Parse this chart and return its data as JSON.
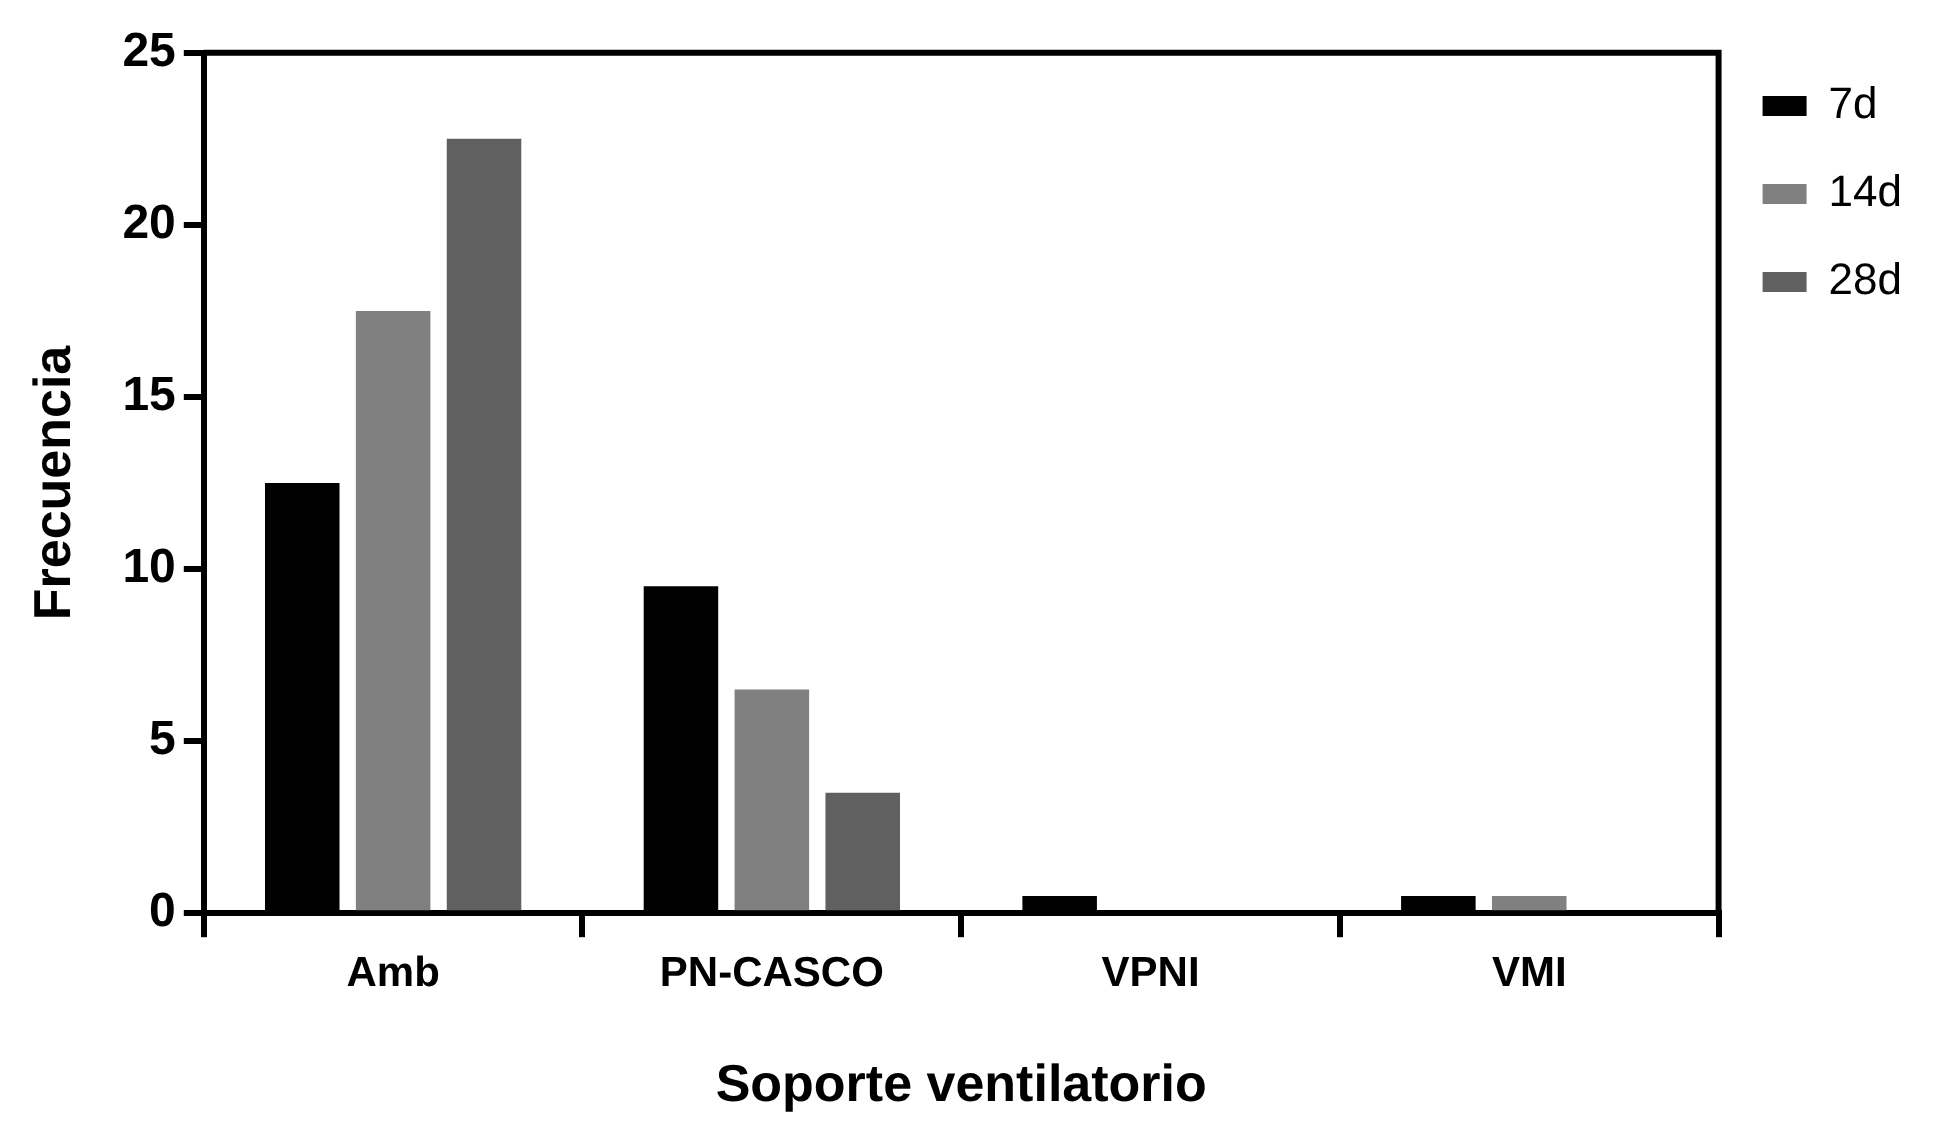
{
  "chart_data": {
    "type": "bar",
    "xlabel": "Soporte ventilatorio",
    "ylabel": "Frecuencia",
    "categories": [
      "Amb",
      "PN-CASCO",
      "VPNI",
      "VMI"
    ],
    "series": [
      {
        "name": "7d",
        "color": "#000000",
        "values": [
          12.5,
          9.5,
          0.5,
          0.5
        ]
      },
      {
        "name": "14d",
        "color": "#808080",
        "values": [
          17.5,
          6.5,
          0,
          0.5
        ]
      },
      {
        "name": "28d",
        "color": "#606060",
        "values": [
          22.5,
          3.5,
          0,
          0
        ]
      }
    ],
    "ylim": [
      0,
      25
    ],
    "yticks": [
      0,
      5,
      10,
      15,
      20,
      25
    ],
    "grid": false,
    "legend": "top right"
  }
}
